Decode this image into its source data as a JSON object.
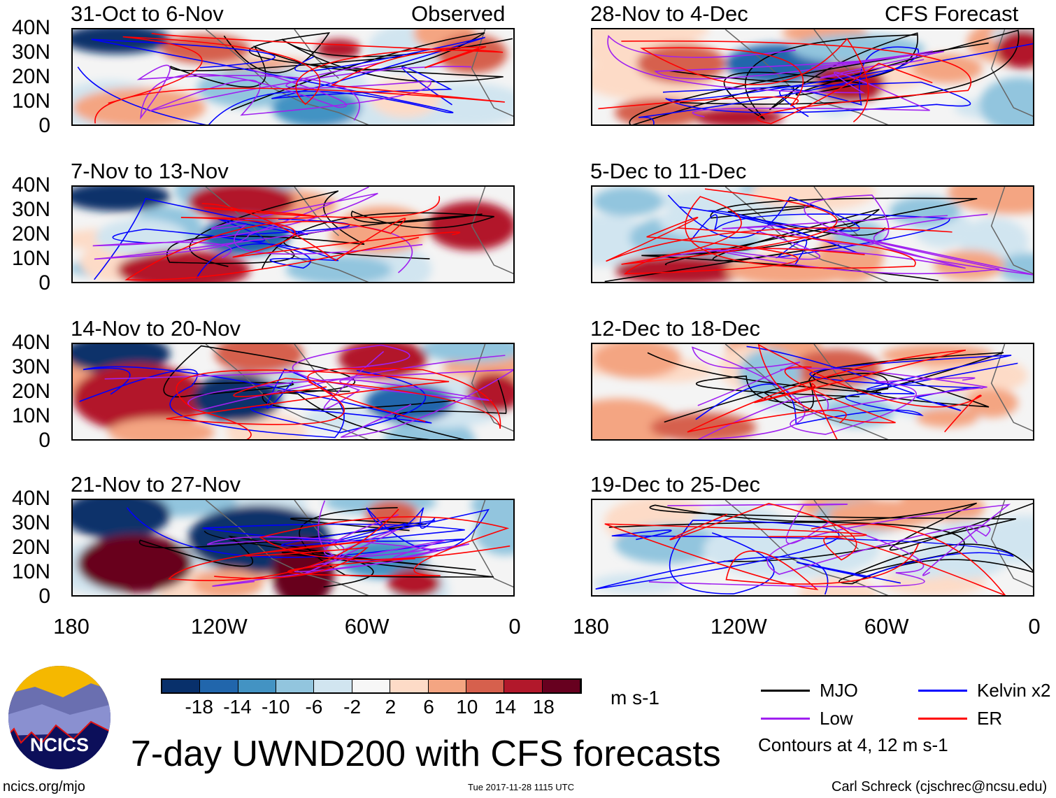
{
  "title": "7-day UWND200 with CFS forecasts",
  "left_header": "Observed",
  "right_header": "CFS Forecast",
  "chart_data": {
    "type": "heatmap",
    "variable": "200-hPa zonal wind anomaly",
    "units": "m s-1",
    "panels": [
      {
        "label": "31-Oct to 6-Nov",
        "kind": "Observed"
      },
      {
        "label": "7-Nov to 13-Nov",
        "kind": "Observed"
      },
      {
        "label": "14-Nov to 20-Nov",
        "kind": "Observed"
      },
      {
        "label": "21-Nov to 27-Nov",
        "kind": "Observed"
      },
      {
        "label": "28-Nov to 4-Dec",
        "kind": "CFS Forecast"
      },
      {
        "label": "5-Dec to 11-Dec",
        "kind": "CFS Forecast"
      },
      {
        "label": "12-Dec to 18-Dec",
        "kind": "CFS Forecast"
      },
      {
        "label": "19-Dec to 25-Dec",
        "kind": "CFS Forecast"
      }
    ],
    "y_ticks": [
      "40N",
      "30N",
      "20N",
      "10N",
      "0"
    ],
    "x_ticks": [
      "180",
      "120W",
      "60W",
      "0"
    ],
    "colorbar": {
      "levels": [
        "-18",
        "-14",
        "-10",
        "-6",
        "-2",
        "2",
        "6",
        "10",
        "14",
        "18"
      ],
      "colors": [
        "#08306b",
        "#2166ac",
        "#4393c3",
        "#92c5de",
        "#d1e5f0",
        "#f7f7f7",
        "#fddbc7",
        "#f4a582",
        "#d6604d",
        "#b2182b",
        "#67001f"
      ],
      "units": "m s-1"
    },
    "legend": [
      {
        "label": "MJO",
        "color": "#000000"
      },
      {
        "label": "Kelvin x2",
        "color": "#0000ff"
      },
      {
        "label": "Low",
        "color": "#a020f0"
      },
      {
        "label": "ER",
        "color": "#ff0000"
      }
    ],
    "contour_note": "Contours at 4, 12 m s-1"
  },
  "footer": {
    "url": "ncics.org/mjo",
    "timestamp": "Tue 2017-11-28 1115 UTC",
    "credit": "Carl Schreck (cjschrec@ncsu.edu)",
    "logo_text": "NCICS"
  }
}
